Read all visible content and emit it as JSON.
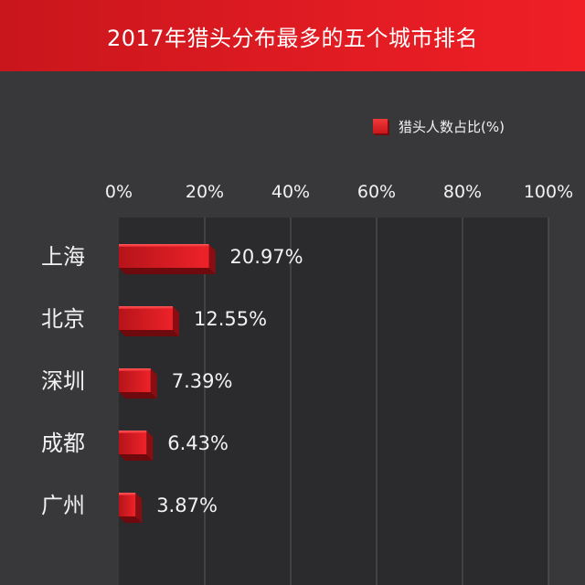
{
  "header": {
    "title": "2017年猎头分布最多的五个城市排名"
  },
  "legend": {
    "label": "猎头人数占比(%)"
  },
  "colors": {
    "header": "#e01b22",
    "bar": "#e41e25",
    "background": "#38383a",
    "text": "#f2f2f2"
  },
  "chart_data": {
    "type": "bar",
    "orientation": "horizontal",
    "title": "2017年猎头分布最多的五个城市排名",
    "categories": [
      "上海",
      "北京",
      "深圳",
      "成都",
      "广州"
    ],
    "series": [
      {
        "name": "猎头人数占比(%)",
        "values": [
          20.97,
          12.55,
          7.39,
          6.43,
          3.87
        ]
      }
    ],
    "value_labels": [
      "20.97%",
      "12.55%",
      "7.39%",
      "6.43%",
      "3.87%"
    ],
    "x_ticks": [
      "0%",
      "20%",
      "40%",
      "60%",
      "80%",
      "100%"
    ],
    "xlim": [
      0,
      100
    ],
    "grid": true,
    "legend_position": "top-right"
  }
}
